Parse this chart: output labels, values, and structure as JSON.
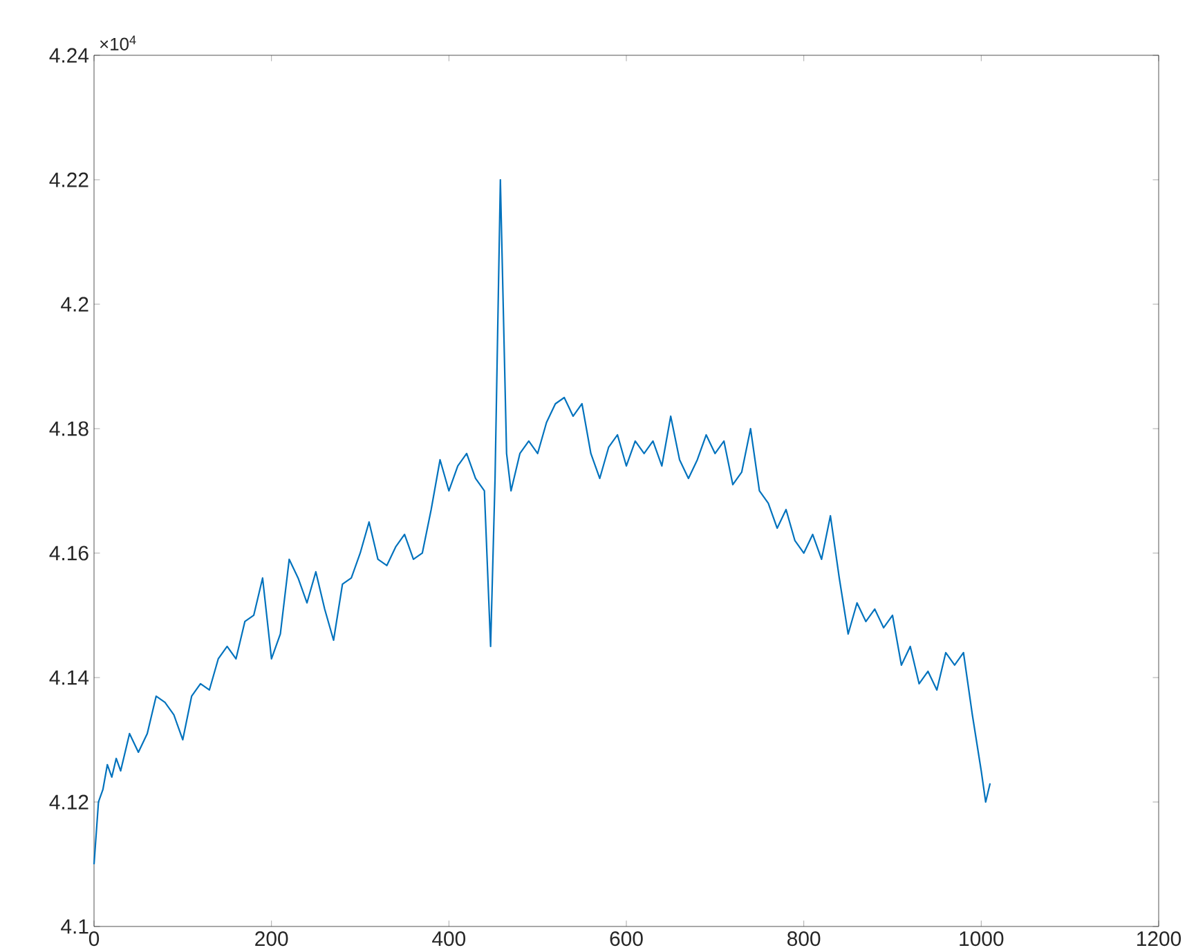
{
  "chart_data": {
    "type": "line",
    "annotations": [
      "×10$^{4}$"
    ],
    "xlim": [
      0,
      1200
    ],
    "xticks": [
      0,
      200,
      400,
      600,
      800,
      1000,
      1200
    ],
    "ylim": [
      4.1,
      4.24
    ],
    "yticks": [
      4.1,
      4.12,
      4.14,
      4.16,
      4.18,
      4.2,
      4.22,
      4.24
    ],
    "grid": false,
    "series": [
      {
        "color": "#0072bd",
        "x": [
          0,
          5,
          10,
          15,
          20,
          25,
          30,
          40,
          50,
          60,
          70,
          80,
          90,
          100,
          110,
          120,
          130,
          140,
          150,
          160,
          170,
          180,
          190,
          200,
          210,
          220,
          230,
          240,
          250,
          260,
          270,
          280,
          290,
          300,
          310,
          320,
          330,
          340,
          350,
          360,
          370,
          380,
          390,
          400,
          410,
          420,
          430,
          440,
          447,
          452,
          458,
          465,
          470,
          480,
          490,
          500,
          510,
          520,
          530,
          540,
          550,
          560,
          570,
          580,
          590,
          600,
          610,
          620,
          630,
          640,
          650,
          660,
          670,
          680,
          690,
          700,
          710,
          720,
          730,
          740,
          750,
          760,
          770,
          780,
          790,
          800,
          810,
          820,
          830,
          840,
          850,
          860,
          870,
          880,
          890,
          900,
          910,
          920,
          930,
          940,
          950,
          960,
          970,
          980,
          990,
          1000,
          1005,
          1010
        ],
        "values": [
          4.11,
          4.12,
          4.122,
          4.126,
          4.124,
          4.127,
          4.125,
          4.131,
          4.128,
          4.131,
          4.137,
          4.136,
          4.134,
          4.13,
          4.137,
          4.139,
          4.138,
          4.143,
          4.145,
          4.143,
          4.149,
          4.15,
          4.156,
          4.143,
          4.147,
          4.159,
          4.156,
          4.152,
          4.157,
          4.151,
          4.146,
          4.155,
          4.156,
          4.16,
          4.165,
          4.159,
          4.158,
          4.161,
          4.163,
          4.159,
          4.16,
          4.167,
          4.175,
          4.17,
          4.174,
          4.176,
          4.172,
          4.17,
          4.145,
          4.172,
          4.22,
          4.176,
          4.17,
          4.176,
          4.178,
          4.176,
          4.181,
          4.184,
          4.185,
          4.182,
          4.184,
          4.176,
          4.172,
          4.177,
          4.179,
          4.174,
          4.178,
          4.176,
          4.178,
          4.174,
          4.182,
          4.175,
          4.172,
          4.175,
          4.179,
          4.176,
          4.178,
          4.171,
          4.173,
          4.18,
          4.17,
          4.168,
          4.164,
          4.167,
          4.162,
          4.16,
          4.163,
          4.159,
          4.166,
          4.156,
          4.147,
          4.152,
          4.149,
          4.151,
          4.148,
          4.15,
          4.142,
          4.145,
          4.139,
          4.141,
          4.138,
          4.144,
          4.142,
          4.144,
          4.134,
          4.125,
          4.12,
          4.123
        ]
      }
    ]
  }
}
